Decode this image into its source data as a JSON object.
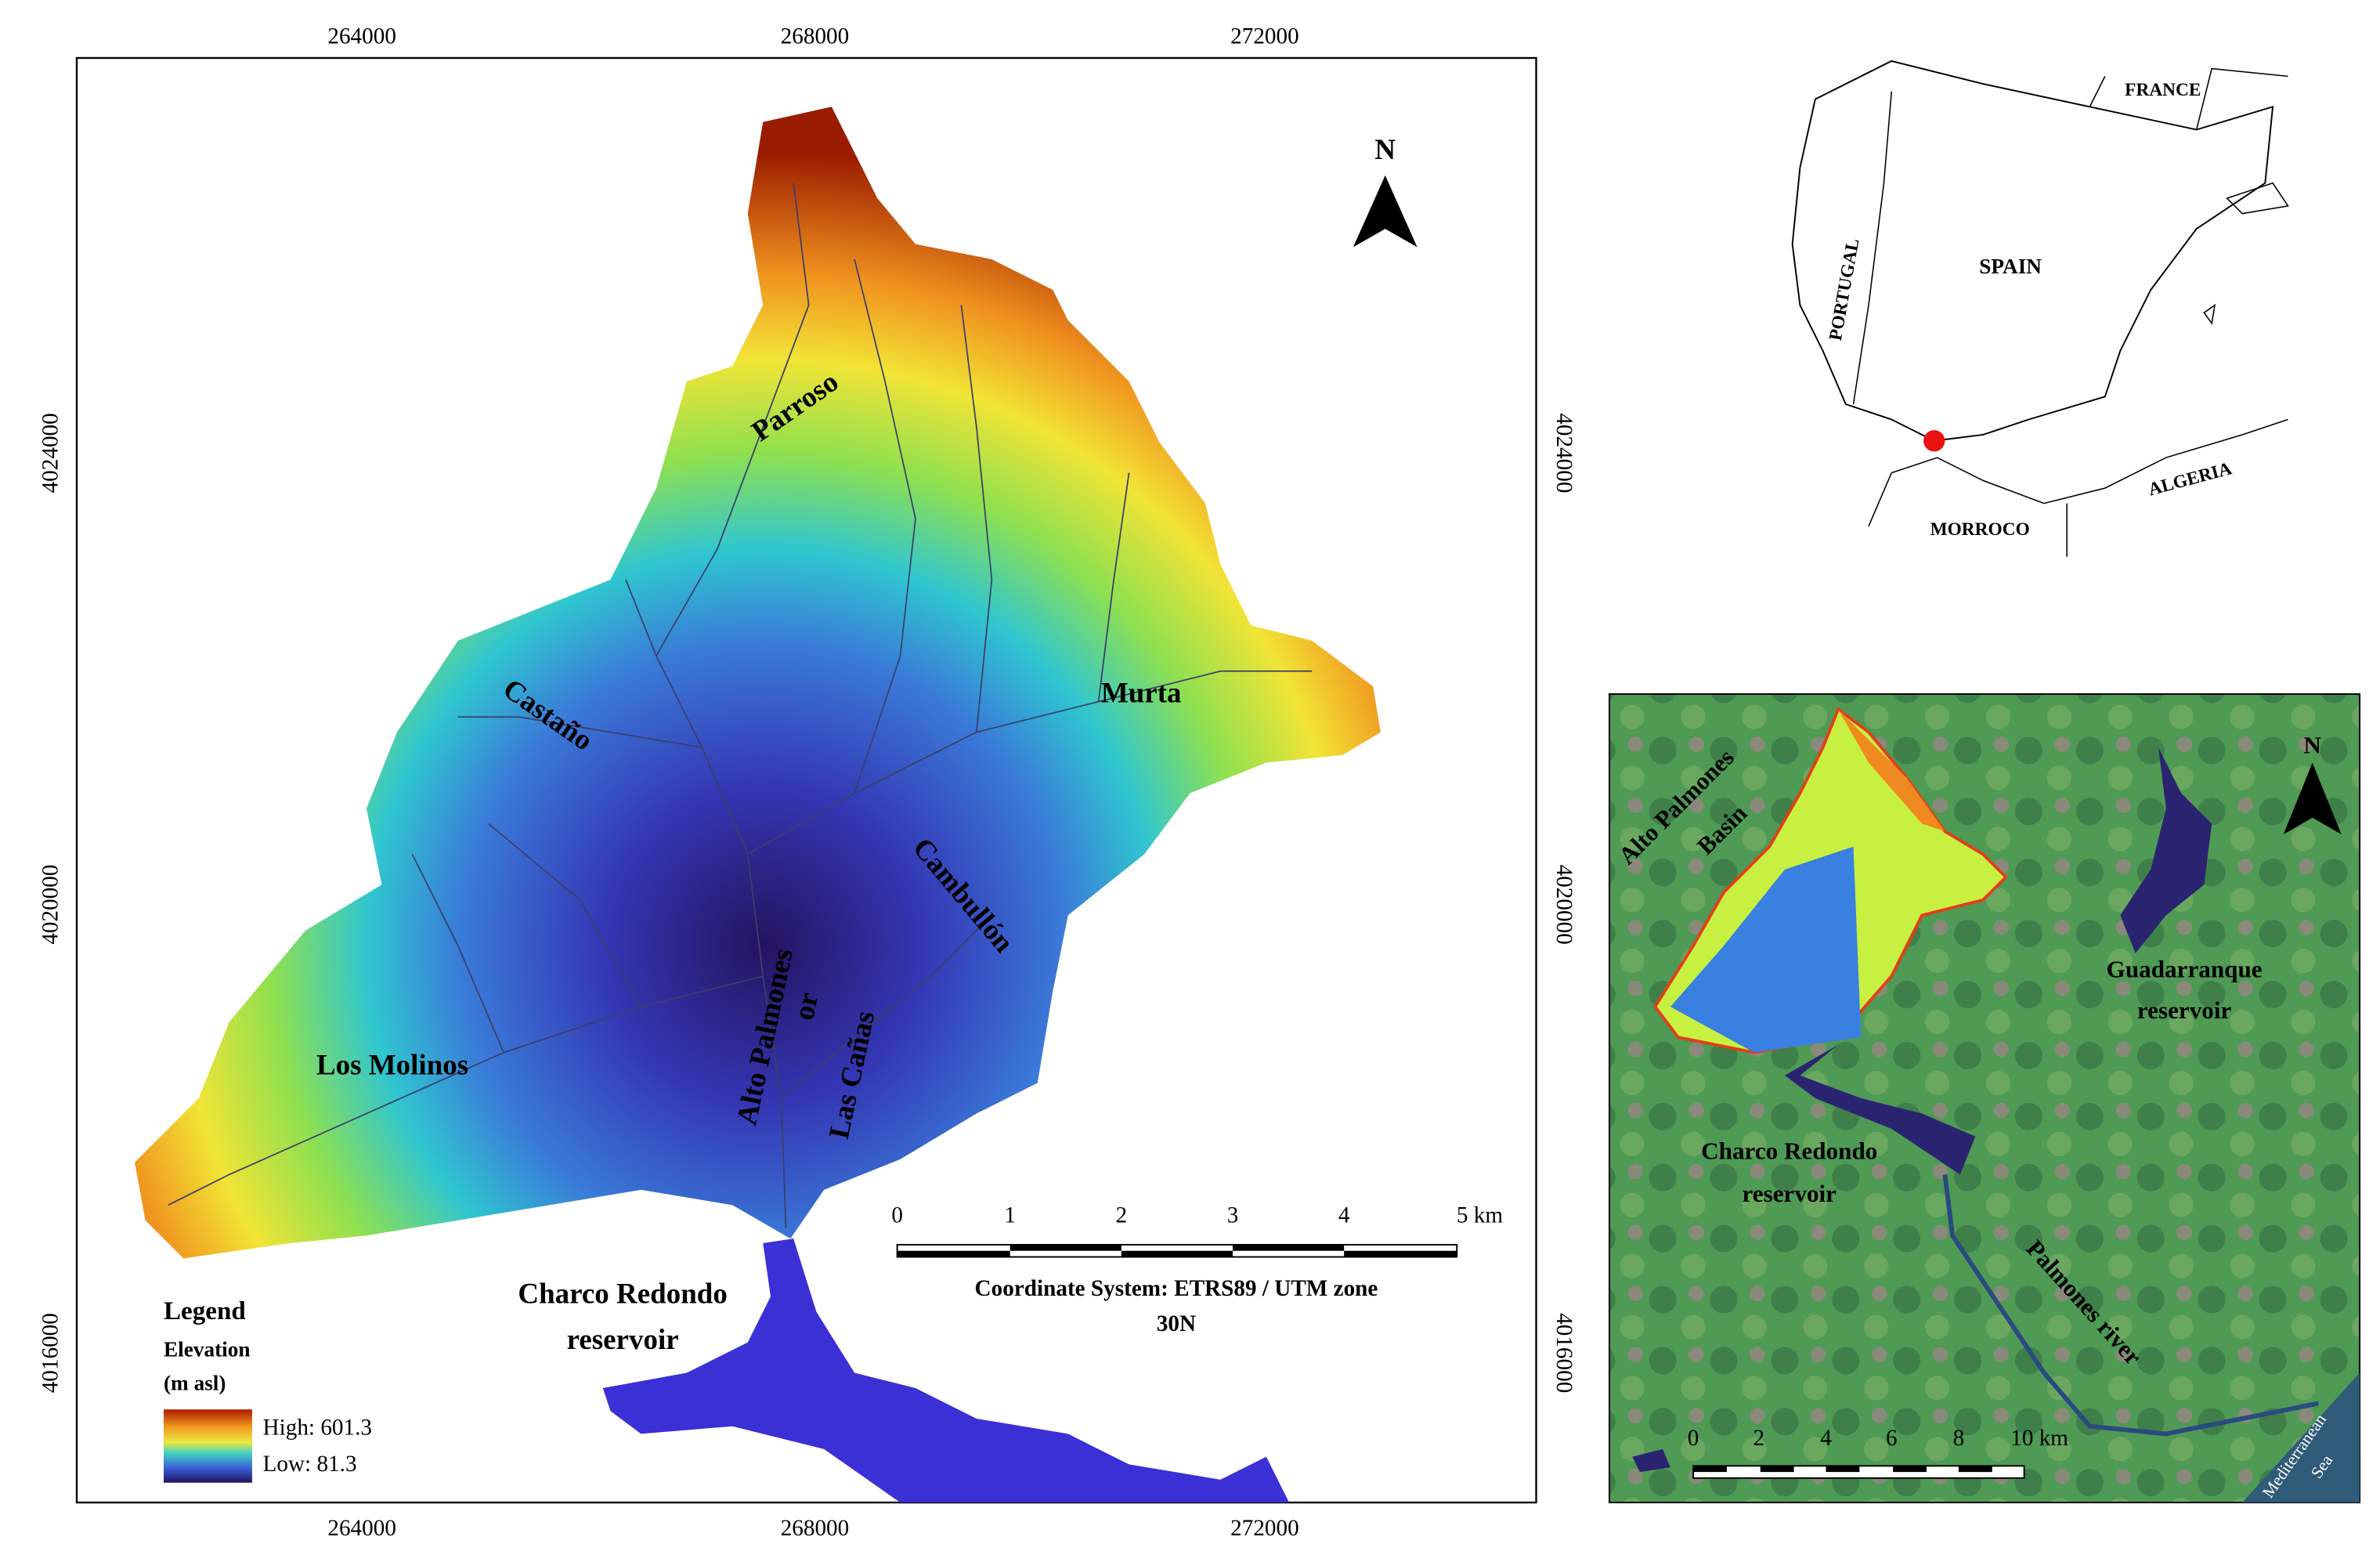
{
  "main_map": {
    "x_tick_labels": [
      "264000",
      "268000",
      "272000"
    ],
    "y_tick_labels": [
      "4024000",
      "4020000",
      "4016000"
    ],
    "north": "N",
    "streams": {
      "parroso": "Parroso",
      "castano": "Castaño",
      "murta": "Murta",
      "cambullon": "Cambullón",
      "los_molinos": "Los Molinos",
      "alto_palmones": "Alto Palmones",
      "or": "or",
      "las_canas": "Las Cañas"
    },
    "reservoir": [
      "Charco Redondo",
      "reservoir"
    ],
    "scale_bar": [
      "0",
      "1",
      "2",
      "3",
      "4",
      "5 km"
    ],
    "coordinate_system": [
      "Coordinate System: ETRS89 / UTM zone",
      "30N"
    ],
    "legend": {
      "title": "Legend",
      "subtitle": "Elevation",
      "unit": "(m asl)",
      "high": "High: 601.3",
      "low": "Low: 81.3"
    }
  },
  "location_map": {
    "france": "FRANCE",
    "spain": "SPAIN",
    "portugal": "PORTUGAL",
    "algeria": "ALGERIA",
    "morocco": "MORROCO"
  },
  "satellite_map": {
    "basin": [
      "Alto Palmones",
      "Basin"
    ],
    "north": "N",
    "guadarranque": [
      "Guadarranque",
      "reservoir"
    ],
    "charco": [
      "Charco Redondo",
      "reservoir"
    ],
    "river": "Palmones river",
    "scale_bar": [
      "0",
      "2",
      "4",
      "6",
      "8",
      "10 km"
    ],
    "sea": [
      "Mediterranean",
      "Sea"
    ]
  }
}
